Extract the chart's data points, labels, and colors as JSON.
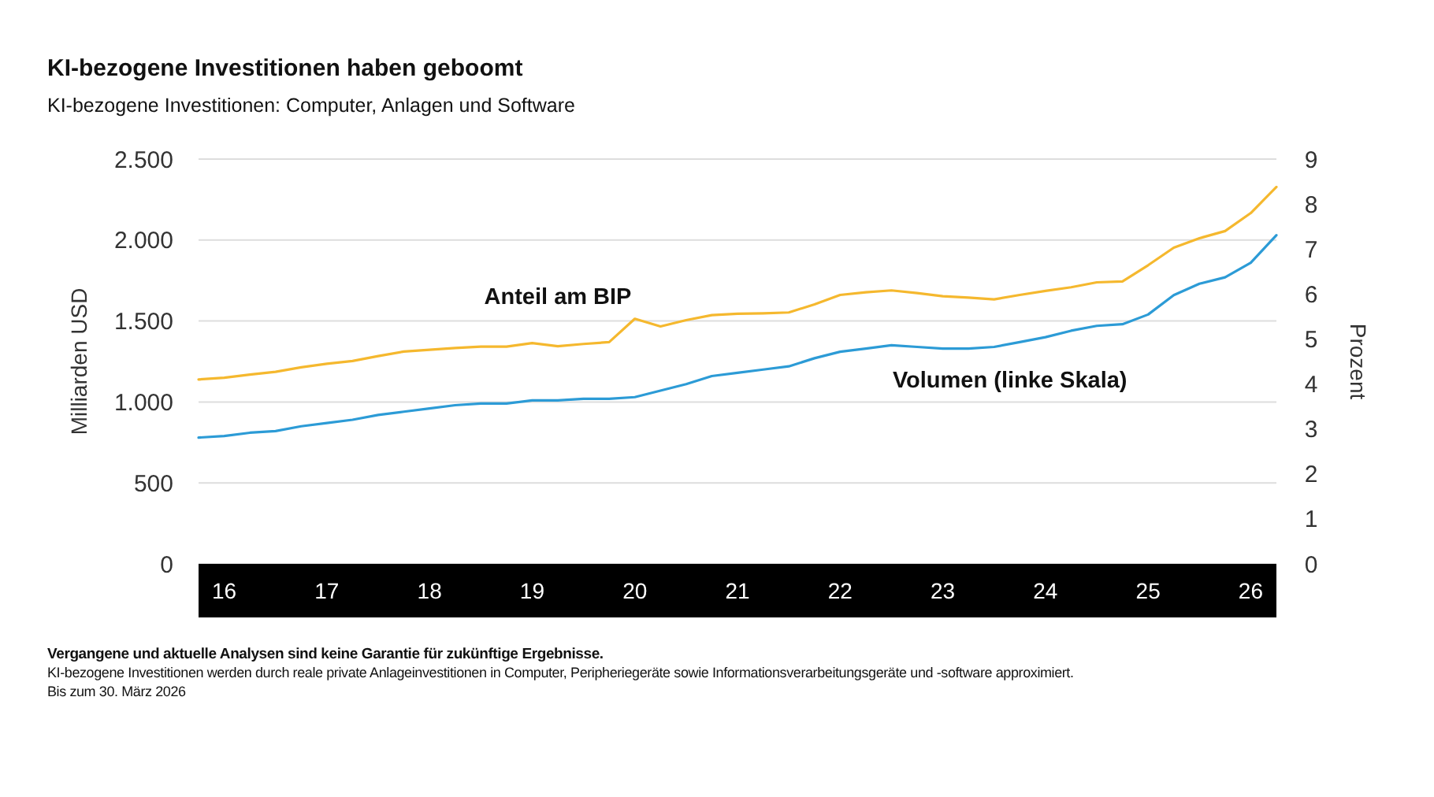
{
  "chart_data": {
    "type": "line",
    "title": "KI-bezogene Investitionen haben geboomt",
    "subtitle": "KI-bezogene Investitionen: Computer, Anlagen und Software",
    "ylabel": "Milliarden USD",
    "y2label": "Prozent",
    "x": [
      2015.75,
      2016,
      2016.25,
      2016.5,
      2016.75,
      2017,
      2017.25,
      2017.5,
      2017.75,
      2018,
      2018.25,
      2018.5,
      2018.75,
      2019,
      2019.25,
      2019.5,
      2019.75,
      2020,
      2020.25,
      2020.5,
      2020.75,
      2021,
      2021.25,
      2021.5,
      2021.75,
      2022,
      2022.25,
      2022.5,
      2022.75,
      2023,
      2023.25,
      2023.5,
      2023.75,
      2024,
      2024.25,
      2024.5,
      2024.75,
      2025,
      2025.25,
      2025.5,
      2025.75,
      2026,
      2026.25
    ],
    "xlim": [
      2015.75,
      2026.25
    ],
    "xticks": [
      {
        "value": 2016,
        "label": "16"
      },
      {
        "value": 2017,
        "label": "17"
      },
      {
        "value": 2018,
        "label": "18"
      },
      {
        "value": 2019,
        "label": "19"
      },
      {
        "value": 2020,
        "label": "20"
      },
      {
        "value": 2021,
        "label": "21"
      },
      {
        "value": 2022,
        "label": "22"
      },
      {
        "value": 2023,
        "label": "23"
      },
      {
        "value": 2024,
        "label": "24"
      },
      {
        "value": 2025,
        "label": "25"
      },
      {
        "value": 2026,
        "label": "26"
      }
    ],
    "ylim": [
      0,
      2500
    ],
    "yticks": [
      0,
      {
        "value": 500,
        "label": "500"
      },
      {
        "value": 1000,
        "label": "1.000"
      },
      {
        "value": 1500,
        "label": "1.500"
      },
      {
        "value": 2000,
        "label": "2.000"
      },
      {
        "value": 2500,
        "label": "2.500"
      }
    ],
    "y2lim": [
      0,
      9
    ],
    "y2ticks": [
      0,
      1,
      2,
      3,
      4,
      5,
      6,
      7,
      8,
      9
    ],
    "series": [
      {
        "name": "Anteil am BIP",
        "color": "#f5b82e",
        "axis": "y2",
        "values": [
          4.1,
          4.14,
          4.21,
          4.27,
          4.37,
          4.45,
          4.51,
          4.62,
          4.72,
          4.76,
          4.8,
          4.83,
          4.83,
          4.91,
          4.84,
          4.89,
          4.93,
          5.45,
          5.28,
          5.42,
          5.53,
          5.56,
          5.57,
          5.59,
          5.77,
          5.98,
          6.04,
          6.08,
          6.02,
          5.95,
          5.92,
          5.88,
          5.98,
          6.07,
          6.15,
          6.26,
          6.28,
          6.64,
          7.03,
          7.24,
          7.4,
          7.8,
          8.38
        ]
      },
      {
        "name": "Volumen (linke Skala)",
        "color": "#2c9bd6",
        "values": [
          780,
          790,
          810,
          820,
          850,
          870,
          890,
          920,
          940,
          960,
          980,
          990,
          990,
          1010,
          1010,
          1020,
          1020,
          1030,
          1070,
          1110,
          1160,
          1180,
          1200,
          1220,
          1270,
          1310,
          1330,
          1350,
          1340,
          1330,
          1330,
          1340,
          1370,
          1400,
          1440,
          1470,
          1480,
          1540,
          1660,
          1730,
          1770,
          1860,
          2030
        ]
      }
    ],
    "grid": "y",
    "annotations": [
      "Vergangene und aktuelle Analysen sind keine Garantie für zukünftige Ergebnisse.",
      "KI-bezogene Investitionen werden durch reale private Anlageinvestitionen in Computer, Peripheriegeräte sowie Informationsverarbeitungsgeräte und -software approximiert.",
      "Bis zum 30. März 2026"
    ]
  }
}
